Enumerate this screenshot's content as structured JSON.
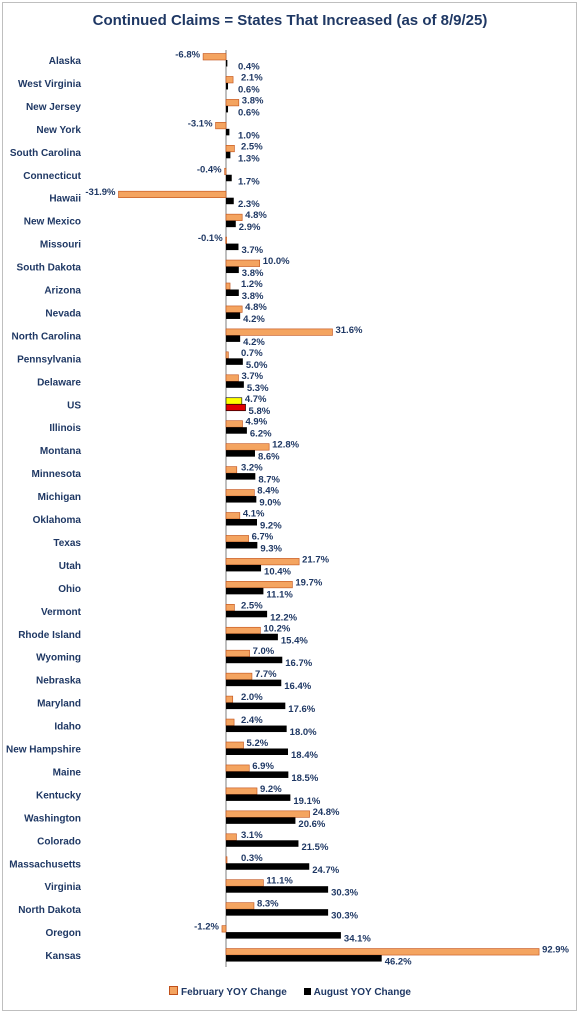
{
  "chart_data": {
    "type": "bar",
    "orientation": "horizontal",
    "title": "Continued Claims = States That Increased (as of 8/9/25)",
    "categories": [
      "Alaska",
      "West Virginia",
      "New Jersey",
      "New York",
      "South Carolina",
      "Connecticut",
      "Hawaii",
      "New Mexico",
      "Missouri",
      "South Dakota",
      "Arizona",
      "Nevada",
      "North Carolina",
      "Pennsylvania",
      "Delaware",
      "US",
      "Illinois",
      "Montana",
      "Minnesota",
      "Michigan",
      "Oklahoma",
      "Texas",
      "Utah",
      "Ohio",
      "Vermont",
      "Rhode Island",
      "Wyoming",
      "Nebraska",
      "Maryland",
      "Idaho",
      "New Hampshire",
      "Maine",
      "Kentucky",
      "Washington",
      "Colorado",
      "Massachusetts",
      "Virginia",
      "North Dakota",
      "Oregon",
      "Kansas"
    ],
    "series": [
      {
        "name": "February YOY Change",
        "color": "#f4a460",
        "highlight_color": "#ffff00",
        "values": [
          -6.8,
          2.1,
          3.8,
          -3.1,
          2.5,
          -0.4,
          -31.9,
          4.8,
          -0.1,
          10.0,
          1.2,
          4.8,
          31.6,
          0.7,
          3.7,
          4.7,
          4.9,
          12.8,
          3.2,
          8.4,
          4.1,
          6.7,
          21.7,
          19.7,
          2.5,
          10.2,
          7.0,
          7.7,
          2.0,
          2.4,
          5.2,
          6.9,
          9.2,
          24.8,
          3.1,
          0.3,
          11.1,
          8.3,
          -1.2,
          92.9
        ],
        "labels": [
          "-6.8%",
          "2.1%",
          "3.8%",
          "-3.1%",
          "2.5%",
          "-0.4%",
          "-31.9%",
          "4.8%",
          "-0.1%",
          "10.0%",
          "1.2%",
          "4.8%",
          "31.6%",
          "0.7%",
          "3.7%",
          "4.7%",
          "4.9%",
          "12.8%",
          "3.2%",
          "8.4%",
          "4.1%",
          "6.7%",
          "21.7%",
          "19.7%",
          "2.5%",
          "10.2%",
          "7.0%",
          "7.7%",
          "2.0%",
          "2.4%",
          "5.2%",
          "6.9%",
          "9.2%",
          "24.8%",
          "3.1%",
          "0.3%",
          "11.1%",
          "8.3%",
          "-1.2%",
          "92.9%"
        ]
      },
      {
        "name": "August YOY Change",
        "color": "#000000",
        "highlight_color": "#e00000",
        "values": [
          0.4,
          0.6,
          0.6,
          1.0,
          1.3,
          1.7,
          2.3,
          2.9,
          3.7,
          3.8,
          3.8,
          4.2,
          4.2,
          5.0,
          5.3,
          5.8,
          6.2,
          8.6,
          8.7,
          9.0,
          9.2,
          9.3,
          10.4,
          11.1,
          12.2,
          15.4,
          16.7,
          16.4,
          17.6,
          18.0,
          18.4,
          18.5,
          19.1,
          20.6,
          21.5,
          24.7,
          30.3,
          30.3,
          34.1,
          46.2
        ],
        "labels": [
          "0.4%",
          "0.6%",
          "0.6%",
          "1.0%",
          "1.3%",
          "1.7%",
          "2.3%",
          "2.9%",
          "3.7%",
          "3.8%",
          "3.8%",
          "4.2%",
          "4.2%",
          "5.0%",
          "5.3%",
          "5.8%",
          "6.2%",
          "8.6%",
          "8.7%",
          "9.0%",
          "9.2%",
          "9.3%",
          "10.4%",
          "11.1%",
          "12.2%",
          "15.4%",
          "16.7%",
          "16.4%",
          "17.6%",
          "18.0%",
          "18.4%",
          "18.5%",
          "19.1%",
          "20.6%",
          "21.5%",
          "24.7%",
          "30.3%",
          "30.3%",
          "34.1%",
          "46.2%"
        ]
      }
    ],
    "highlight_category": "US",
    "legend_position": "bottom",
    "grid": false,
    "xlim": [
      -35,
      100
    ]
  }
}
